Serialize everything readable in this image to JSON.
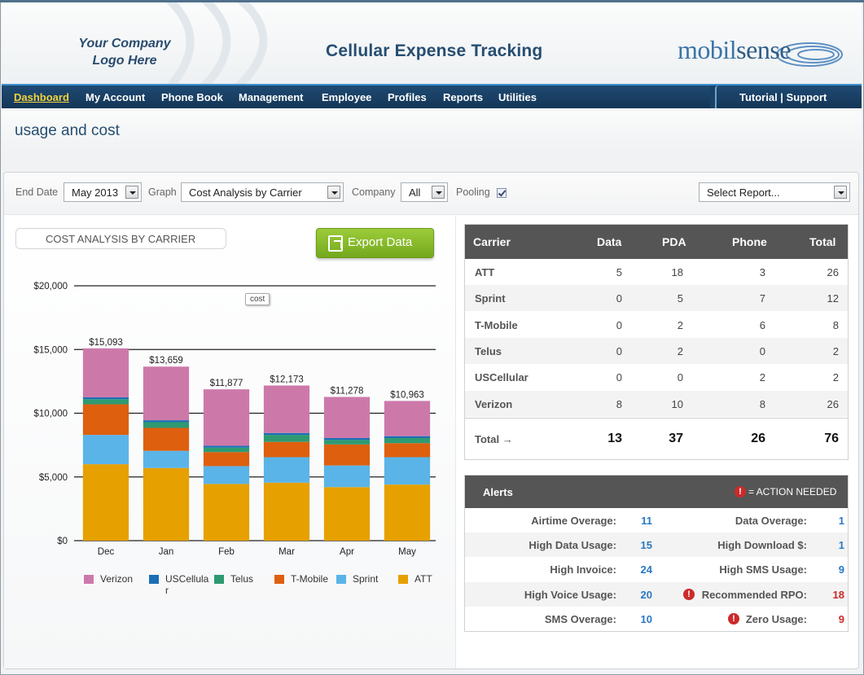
{
  "header": {
    "logo_line1": "Your Company",
    "logo_line2": "Logo Here",
    "app_title": "Cellular Expense Tracking",
    "brand_part1": "mobil",
    "brand_part2": "sense"
  },
  "nav": {
    "items": [
      {
        "label": "Dashboard",
        "active": true
      },
      {
        "label": "My Account"
      },
      {
        "label": "Phone Book"
      },
      {
        "label": "Management"
      },
      {
        "label": "Employee"
      },
      {
        "label": "Profiles"
      },
      {
        "label": "Reports"
      },
      {
        "label": "Utilities"
      }
    ],
    "right_label": "Tutorial | Support"
  },
  "page_title": "usage and cost",
  "filters": {
    "end_date_label": "End Date",
    "end_date_value": "May 2013",
    "graph_label": "Graph",
    "graph_value": "Cost Analysis by Carrier",
    "company_label": "Company",
    "company_value": "All",
    "pooling_label": "Pooling",
    "pooling_checked": true,
    "report_value": "Select Report..."
  },
  "chart_panel": {
    "title": "COST ANALYSIS BY CARRIER",
    "export_label": "Export Data",
    "tooltip": "cost"
  },
  "chart_data": {
    "type": "bar",
    "stacked": true,
    "categories": [
      "Dec",
      "Jan",
      "Feb",
      "Mar",
      "Apr",
      "May"
    ],
    "ylim": [
      0,
      20000
    ],
    "yticks": [
      0,
      5000,
      10000,
      15000,
      20000
    ],
    "ytick_labels": [
      "$0",
      "$5,000",
      "$10,000",
      "$15,000",
      "$20,000"
    ],
    "totals": [
      15093,
      13659,
      11877,
      12173,
      11278,
      10963
    ],
    "total_labels": [
      "$15,093",
      "$13,659",
      "$11,877",
      "$12,173",
      "$11,278",
      "$10,963"
    ],
    "legend_position": "bottom",
    "grid": true,
    "series": [
      {
        "name": "ATT",
        "color": "#e6a000",
        "values": [
          6000,
          5700,
          4450,
          4550,
          4200,
          4400
        ]
      },
      {
        "name": "Sprint",
        "color": "#5ab4e8",
        "values": [
          2300,
          1350,
          1400,
          2000,
          1700,
          2150
        ]
      },
      {
        "name": "T-Mobile",
        "color": "#de5f0e",
        "values": [
          2400,
          1800,
          1100,
          1200,
          1650,
          1100
        ]
      },
      {
        "name": "Telus",
        "color": "#2e9a72",
        "values": [
          400,
          450,
          350,
          550,
          350,
          400
        ]
      },
      {
        "name": "USCellular",
        "color": "#1b6fb5",
        "values": [
          150,
          150,
          150,
          150,
          150,
          150
        ]
      },
      {
        "name": "Verizon",
        "color": "#cc79aa",
        "values": [
          3843,
          4209,
          4427,
          3723,
          3228,
          2763
        ]
      }
    ],
    "legend_order": [
      "Verizon",
      "USCellular",
      "Telus",
      "T-Mobile",
      "Sprint",
      "ATT"
    ],
    "legend_labels": [
      "Verizon",
      "USCellula r",
      "Telus",
      "T-Mobile",
      "Sprint",
      "ATT"
    ]
  },
  "carrier_table": {
    "headers": [
      "Carrier",
      "Data",
      "PDA",
      "Phone",
      "Total"
    ],
    "rows": [
      {
        "name": "ATT",
        "data": "5",
        "pda": "18",
        "phone": "3",
        "total": "26"
      },
      {
        "name": "Sprint",
        "data": "0",
        "pda": "5",
        "phone": "7",
        "total": "12"
      },
      {
        "name": "T-Mobile",
        "data": "0",
        "pda": "2",
        "phone": "6",
        "total": "8"
      },
      {
        "name": "Telus",
        "data": "0",
        "pda": "2",
        "phone": "0",
        "total": "2"
      },
      {
        "name": "USCellular",
        "data": "0",
        "pda": "0",
        "phone": "2",
        "total": "2"
      },
      {
        "name": "Verizon",
        "data": "8",
        "pda": "10",
        "phone": "8",
        "total": "26"
      }
    ],
    "total_label": "Total →",
    "totals": {
      "data": "13",
      "pda": "37",
      "phone": "26",
      "total": "76"
    }
  },
  "alerts": {
    "title": "Alerts",
    "legend_text": "= ACTION NEEDED",
    "rows": [
      {
        "left_label": "Airtime Overage:",
        "left_value": "11",
        "right_label": "Data Overage:",
        "right_value": "1",
        "right_action": false
      },
      {
        "left_label": "High Data Usage:",
        "left_value": "15",
        "right_label": "High Download $:",
        "right_value": "1",
        "right_action": false
      },
      {
        "left_label": "High Invoice:",
        "left_value": "24",
        "right_label": "High SMS Usage:",
        "right_value": "9",
        "right_action": false
      },
      {
        "left_label": "High Voice Usage:",
        "left_value": "20",
        "right_label": "Recommended RPO:",
        "right_value": "18",
        "right_action": true
      },
      {
        "left_label": "SMS Overage:",
        "left_value": "10",
        "right_label": "Zero Usage:",
        "right_value": "9",
        "right_action": true
      }
    ]
  }
}
